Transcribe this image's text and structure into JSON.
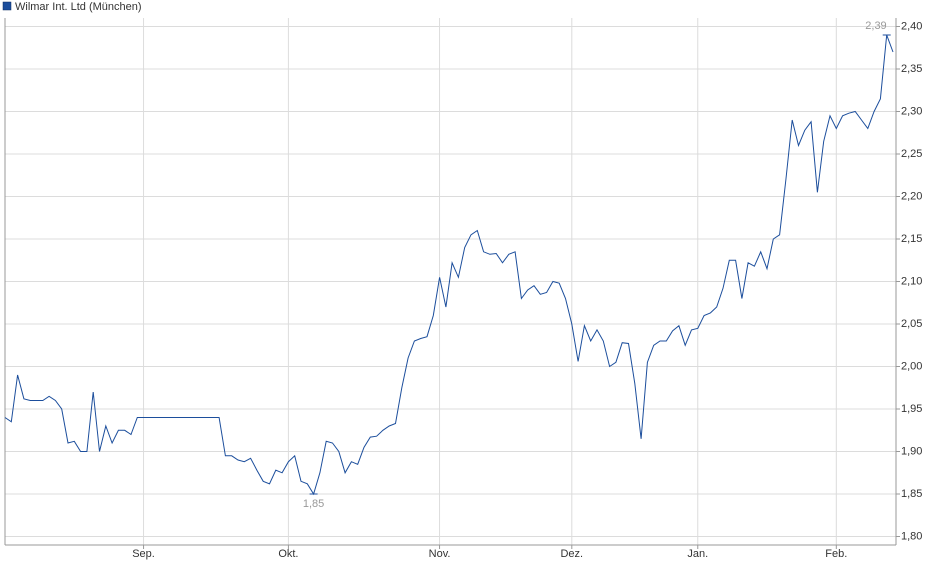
{
  "chart_data": {
    "type": "line",
    "series": [
      {
        "name": "Wilmar Int. Ltd (München)",
        "color": "#1c4e9c",
        "values": [
          1.94,
          1.935,
          1.99,
          1.962,
          1.96,
          1.96,
          1.96,
          1.965,
          1.96,
          1.95,
          1.91,
          1.912,
          1.9,
          1.9,
          1.97,
          1.9,
          1.93,
          1.91,
          1.925,
          1.925,
          1.92,
          1.94,
          1.94,
          1.94,
          1.94,
          1.94,
          1.94,
          1.94,
          1.94,
          1.94,
          1.94,
          1.94,
          1.94,
          1.94,
          1.94,
          1.895,
          1.895,
          1.89,
          1.888,
          1.892,
          1.878,
          1.865,
          1.862,
          1.878,
          1.875,
          1.888,
          1.895,
          1.865,
          1.862,
          1.85,
          1.875,
          1.912,
          1.91,
          1.9,
          1.875,
          1.888,
          1.885,
          1.905,
          1.917,
          1.918,
          1.925,
          1.93,
          1.933,
          1.975,
          2.01,
          2.03,
          2.033,
          2.035,
          2.06,
          2.105,
          2.07,
          2.122,
          2.105,
          2.14,
          2.155,
          2.16,
          2.135,
          2.132,
          2.133,
          2.122,
          2.132,
          2.135,
          2.08,
          2.09,
          2.095,
          2.085,
          2.087,
          2.1,
          2.098,
          2.08,
          2.05,
          2.006,
          2.048,
          2.03,
          2.043,
          2.03,
          2.0,
          2.005,
          2.028,
          2.027,
          1.98,
          1.915,
          2.005,
          2.025,
          2.03,
          2.03,
          2.042,
          2.048,
          2.025,
          2.043,
          2.045,
          2.06,
          2.063,
          2.07,
          2.092,
          2.125,
          2.125,
          2.08,
          2.122,
          2.118,
          2.135,
          2.115,
          2.15,
          2.155,
          2.22,
          2.29,
          2.26,
          2.278,
          2.288,
          2.205,
          2.265,
          2.295,
          2.28,
          2.295,
          2.298,
          2.3,
          2.29,
          2.28,
          2.3,
          2.315,
          2.39,
          2.37
        ]
      }
    ],
    "categories": [
      null,
      null,
      null,
      null,
      null,
      null,
      null,
      null,
      null,
      null,
      null,
      null,
      null,
      null,
      null,
      null,
      null,
      null,
      null,
      null,
      null,
      null,
      "Sep.",
      null,
      null,
      null,
      null,
      null,
      null,
      null,
      null,
      null,
      null,
      null,
      null,
      null,
      null,
      null,
      null,
      null,
      null,
      null,
      null,
      null,
      null,
      "Okt.",
      null,
      null,
      null,
      null,
      null,
      null,
      null,
      null,
      null,
      null,
      null,
      null,
      null,
      null,
      null,
      null,
      null,
      null,
      null,
      null,
      null,
      null,
      null,
      "Nov.",
      null,
      null,
      null,
      null,
      null,
      null,
      null,
      null,
      null,
      null,
      null,
      null,
      null,
      null,
      null,
      null,
      null,
      null,
      null,
      null,
      "Dez.",
      null,
      null,
      null,
      null,
      null,
      null,
      null,
      null,
      null,
      null,
      null,
      null,
      null,
      null,
      null,
      null,
      null,
      null,
      null,
      "Jan.",
      null,
      null,
      null,
      null,
      null,
      null,
      null,
      null,
      null,
      null,
      null,
      null,
      null,
      null,
      null,
      null,
      null,
      null,
      null,
      null,
      null,
      "Feb.",
      null,
      null,
      null,
      null,
      null,
      null,
      null,
      null,
      null
    ],
    "ylim": [
      1.79,
      2.41
    ],
    "yticks": [
      {
        "value": 1.8,
        "label": "1,80"
      },
      {
        "value": 1.85,
        "label": "1,85"
      },
      {
        "value": 1.9,
        "label": "1,90"
      },
      {
        "value": 1.95,
        "label": "1,95"
      },
      {
        "value": 2.0,
        "label": "2,00"
      },
      {
        "value": 2.05,
        "label": "2,05"
      },
      {
        "value": 2.1,
        "label": "2,10"
      },
      {
        "value": 2.15,
        "label": "2,15"
      },
      {
        "value": 2.2,
        "label": "2,20"
      },
      {
        "value": 2.25,
        "label": "2,25"
      },
      {
        "value": 2.3,
        "label": "2,30"
      },
      {
        "value": 2.35,
        "label": "2,35"
      },
      {
        "value": 2.4,
        "label": "2,40"
      }
    ],
    "annotations": [
      {
        "label": "2,39",
        "value": 2.39
      },
      {
        "label": "1,85",
        "value": 1.85
      }
    ],
    "grid": true,
    "legend": "top-left"
  }
}
